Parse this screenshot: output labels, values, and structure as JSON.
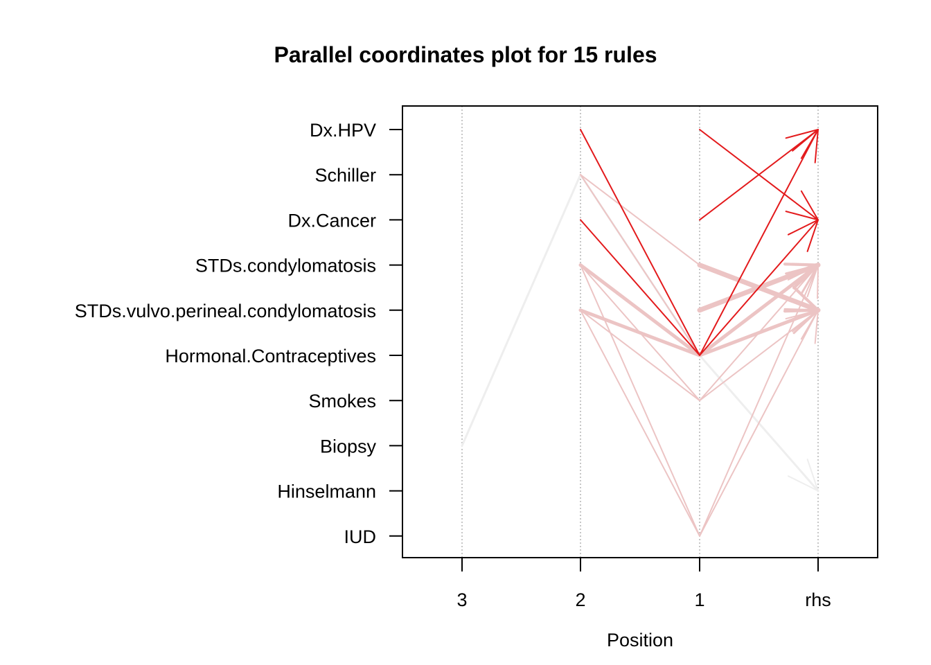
{
  "chart_data": {
    "type": "parallel-coordinates",
    "title": "Parallel coordinates plot for 15 rules",
    "xlabel": "Position",
    "x_positions": [
      "3",
      "2",
      "1",
      "rhs"
    ],
    "items": [
      "Dx.HPV",
      "Schiller",
      "Dx.Cancer",
      "STDs.condylomatosis",
      "STDs.vulvo.perineal.condylomatosis",
      "Hormonal.Contraceptives",
      "Smokes",
      "Biopsy",
      "Hinselmann",
      "IUD"
    ],
    "grid": true,
    "colors": {
      "high": "#e31a1c",
      "mid": "#ecc4c4",
      "low": "#eeeeee",
      "axis": "#000000",
      "grid": "#b3b3b3"
    },
    "rules": [
      {
        "path": [
          "Biopsy",
          "Schiller",
          "Hormonal.Contraceptives",
          "Hinselmann"
        ],
        "color": "low",
        "width": 3
      },
      {
        "path": [
          null,
          "Dx.HPV",
          "Hormonal.Contraceptives",
          "Dx.Cancer"
        ],
        "color": "high",
        "width": 2
      },
      {
        "path": [
          null,
          "Dx.Cancer",
          "Hormonal.Contraceptives",
          "Dx.HPV"
        ],
        "color": "high",
        "width": 2
      },
      {
        "path": [
          null,
          null,
          "Dx.HPV",
          "Dx.Cancer"
        ],
        "color": "high",
        "width": 2
      },
      {
        "path": [
          null,
          null,
          "Dx.Cancer",
          "Dx.HPV"
        ],
        "color": "high",
        "width": 2
      },
      {
        "path": [
          null,
          null,
          "STDs.condylomatosis",
          "STDs.vulvo.perineal.condylomatosis"
        ],
        "color": "mid",
        "width": 7
      },
      {
        "path": [
          null,
          null,
          "STDs.vulvo.perineal.condylomatosis",
          "STDs.condylomatosis"
        ],
        "color": "mid",
        "width": 7
      },
      {
        "path": [
          null,
          "STDs.condylomatosis",
          "Hormonal.Contraceptives",
          "STDs.vulvo.perineal.condylomatosis"
        ],
        "color": "mid",
        "width": 5
      },
      {
        "path": [
          null,
          "STDs.vulvo.perineal.condylomatosis",
          "Hormonal.Contraceptives",
          "STDs.condylomatosis"
        ],
        "color": "mid",
        "width": 5
      },
      {
        "path": [
          null,
          "Schiller",
          "STDs.condylomatosis",
          "STDs.vulvo.perineal.condylomatosis"
        ],
        "color": "mid",
        "width": 2
      },
      {
        "path": [
          null,
          "Schiller",
          "Hormonal.Contraceptives",
          "STDs.condylomatosis"
        ],
        "color": "mid",
        "width": 2
      },
      {
        "path": [
          null,
          "STDs.condylomatosis",
          "Smokes",
          "STDs.vulvo.perineal.condylomatosis"
        ],
        "color": "mid",
        "width": 2
      },
      {
        "path": [
          null,
          "STDs.vulvo.perineal.condylomatosis",
          "Smokes",
          "STDs.condylomatosis"
        ],
        "color": "mid",
        "width": 2
      },
      {
        "path": [
          null,
          "STDs.condylomatosis",
          "IUD",
          "STDs.vulvo.perineal.condylomatosis"
        ],
        "color": "mid",
        "width": 2
      },
      {
        "path": [
          null,
          "STDs.vulvo.perineal.condylomatosis",
          "IUD",
          "STDs.condylomatosis"
        ],
        "color": "mid",
        "width": 2
      }
    ]
  }
}
